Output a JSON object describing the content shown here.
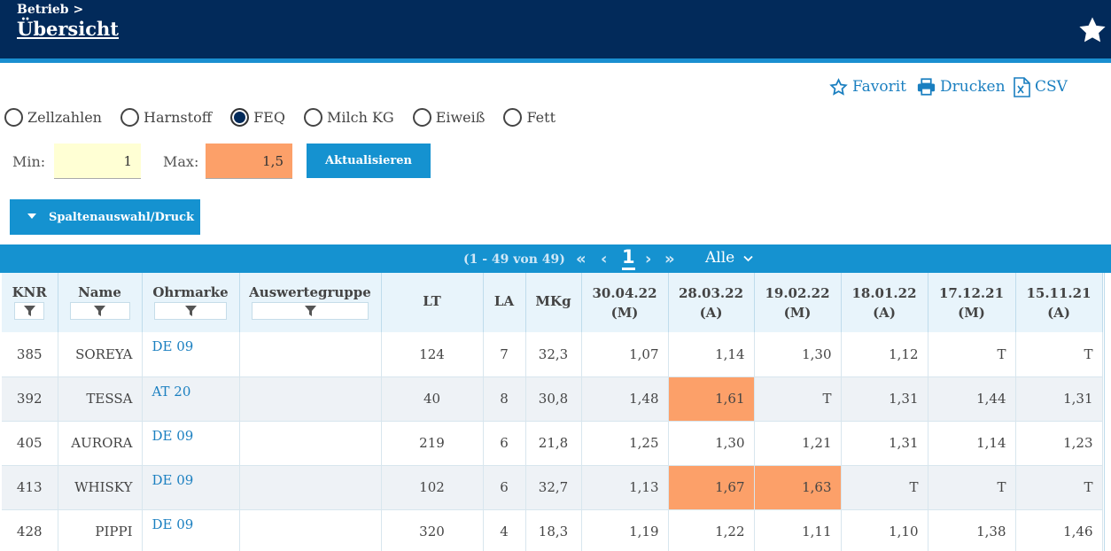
{
  "header": {
    "breadcrumb": "Betrieb >",
    "title": "Übersicht"
  },
  "actions": {
    "favorite": "Favorit",
    "print": "Drucken",
    "csv": "CSV"
  },
  "radios": {
    "selected": "FEQ",
    "options": [
      "Zellzahlen",
      "Harnstoff",
      "FEQ",
      "Milch KG",
      "Eiweiß",
      "Fett"
    ]
  },
  "filter": {
    "min_label": "Min:",
    "min_value": "1",
    "max_label": "Max:",
    "max_value": "1,5",
    "update_label": "Aktualisieren",
    "columns_label": "Spaltenauswahl/Druck"
  },
  "pager": {
    "range": "(1 - 49 von 49)",
    "page": "1",
    "page_size": "Alle"
  },
  "table": {
    "columns": [
      "KNR",
      "Name",
      "Ohrmarke",
      "Auswertegruppe",
      "LT",
      "LA",
      "MKg"
    ],
    "dates": [
      {
        "date": "30.04.22",
        "type": "(M)"
      },
      {
        "date": "28.03.22",
        "type": "(A)"
      },
      {
        "date": "19.02.22",
        "type": "(M)"
      },
      {
        "date": "18.01.22",
        "type": "(A)"
      },
      {
        "date": "17.12.21",
        "type": "(M)"
      },
      {
        "date": "15.11.21",
        "type": "(A)"
      }
    ],
    "rows": [
      {
        "knr": "385",
        "name": "SOREYA",
        "ohrmarke": "DE 09",
        "gruppe": "",
        "lt": "124",
        "la": "7",
        "mkg": "32,3",
        "values": [
          "1,07",
          "1,14",
          "1,30",
          "1,12",
          "T",
          "T"
        ]
      },
      {
        "knr": "392",
        "name": "TESSA",
        "ohrmarke": "AT 20",
        "gruppe": "",
        "lt": "40",
        "la": "8",
        "mkg": "30,8",
        "values": [
          "1,48",
          "1,61",
          "T",
          "1,31",
          "1,44",
          "1,31"
        ]
      },
      {
        "knr": "405",
        "name": "AURORA",
        "ohrmarke": "DE 09",
        "gruppe": "",
        "lt": "219",
        "la": "6",
        "mkg": "21,8",
        "values": [
          "1,25",
          "1,30",
          "1,21",
          "1,31",
          "1,14",
          "1,23"
        ]
      },
      {
        "knr": "413",
        "name": "WHISKY",
        "ohrmarke": "DE 09",
        "gruppe": "",
        "lt": "102",
        "la": "6",
        "mkg": "32,7",
        "values": [
          "1,13",
          "1,67",
          "1,63",
          "T",
          "T",
          "T"
        ]
      },
      {
        "knr": "428",
        "name": "PIPPI",
        "ohrmarke": "DE 09",
        "gruppe": "",
        "lt": "320",
        "la": "4",
        "mkg": "18,3",
        "values": [
          "1,19",
          "1,22",
          "1,11",
          "1,10",
          "1,38",
          "1,46"
        ]
      }
    ]
  },
  "colors": {
    "header_bg": "#022a5a",
    "accent": "#1592d0",
    "highlight": "#fca069",
    "min_bg": "#ffffd4"
  }
}
